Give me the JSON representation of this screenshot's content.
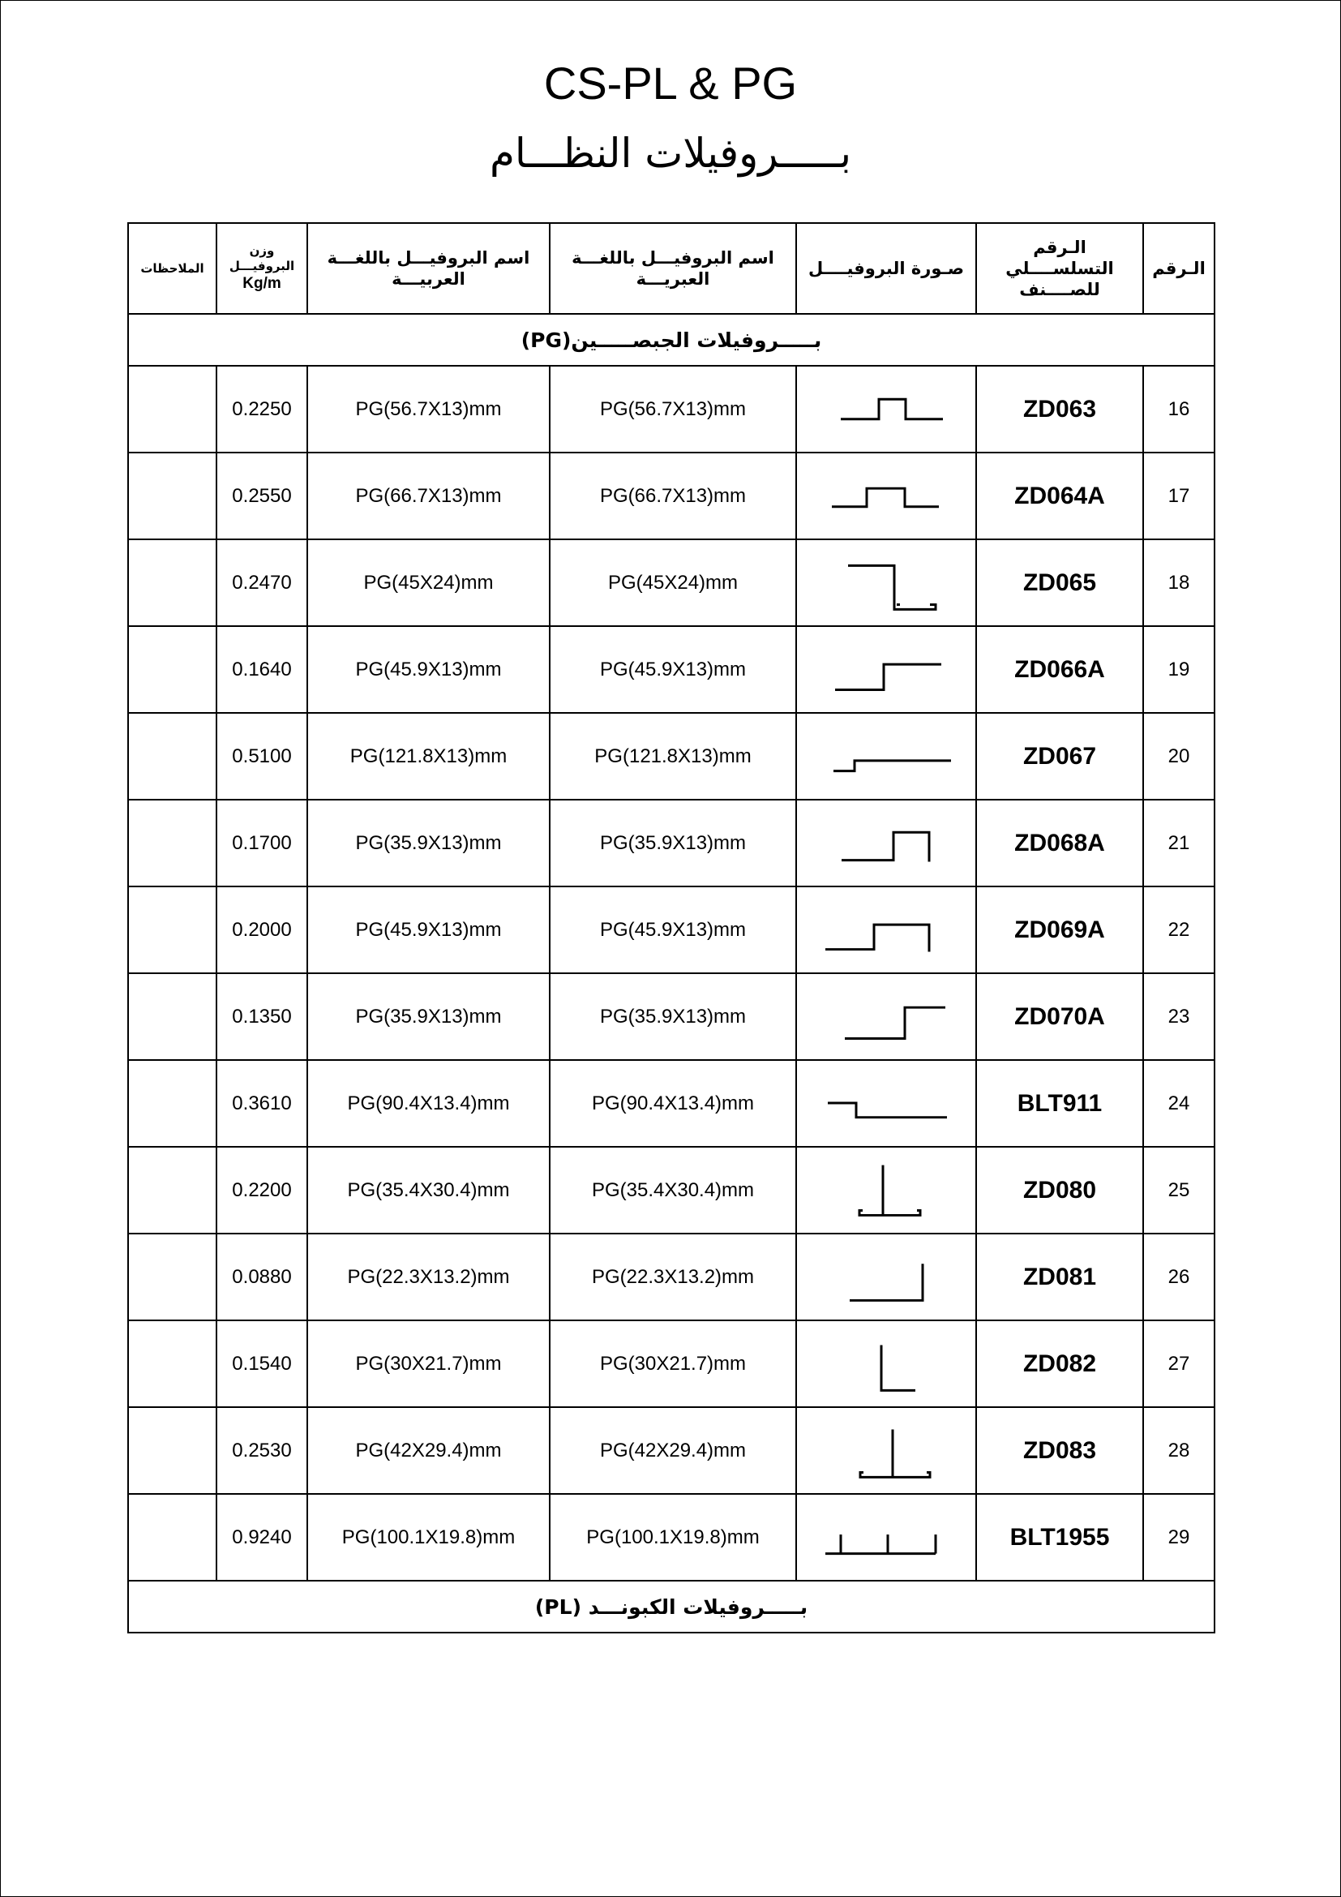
{
  "title": "CS-PL & PG",
  "subtitle": "بـــــروفيلات النظـــام",
  "headers": {
    "no": "الـرقم",
    "code": "الـرقم التسلســــلي للصــــنف",
    "image": "صـورة البروفيــــل",
    "name_hebrew": "اسم البروفيـــل باللغـــة العبريـــة",
    "name_arabic": "اسم البروفيـــل باللغـــة العربيـــة",
    "weight": "وزن البروفيـــل",
    "weight_unit": "Kg/m",
    "notes": "الملاحظات"
  },
  "sections": {
    "pg": "بـــــروفيلات الجبصـــــين(PG)",
    "pl": "بـــــروفيلات الكبونـــد (PL)"
  },
  "rows": [
    {
      "no": "16",
      "code": "ZD063",
      "profile_icon": "hat-profile",
      "name_hebrew": "PG(56.7X13)mm",
      "name_arabic": "PG(56.7X13)mm",
      "weight": "0.2250",
      "notes": ""
    },
    {
      "no": "17",
      "code": "ZD064A",
      "profile_icon": "hat-profile-wide",
      "name_hebrew": "PG(66.7X13)mm",
      "name_arabic": "PG(66.7X13)mm",
      "weight": "0.2550",
      "notes": ""
    },
    {
      "no": "18",
      "code": "ZD065",
      "profile_icon": "z-profile-hooked",
      "name_hebrew": "PG(45X24)mm",
      "name_arabic": "PG(45X24)mm",
      "weight": "0.2470",
      "notes": ""
    },
    {
      "no": "19",
      "code": "ZD066A",
      "profile_icon": "step-profile",
      "name_hebrew": "PG(45.9X13)mm",
      "name_arabic": "PG(45.9X13)mm",
      "weight": "0.1640",
      "notes": ""
    },
    {
      "no": "20",
      "code": "ZD067",
      "profile_icon": "low-step-profile",
      "name_hebrew": "PG(121.8X13)mm",
      "name_arabic": "PG(121.8X13)mm",
      "weight": "0.5100",
      "notes": ""
    },
    {
      "no": "21",
      "code": "ZD068A",
      "profile_icon": "step-channel-profile",
      "name_hebrew": "PG(35.9X13)mm",
      "name_arabic": "PG(35.9X13)mm",
      "weight": "0.1700",
      "notes": ""
    },
    {
      "no": "22",
      "code": "ZD069A",
      "profile_icon": "step-channel-profile-wide",
      "name_hebrew": "PG(45.9X13)mm",
      "name_arabic": "PG(45.9X13)mm",
      "weight": "0.2000",
      "notes": ""
    },
    {
      "no": "23",
      "code": "ZD070A",
      "profile_icon": "step-profile-short",
      "name_hebrew": "PG(35.9X13)mm",
      "name_arabic": "PG(35.9X13)mm",
      "weight": "0.1350",
      "notes": ""
    },
    {
      "no": "24",
      "code": "BLT911",
      "profile_icon": "drop-step-profile",
      "name_hebrew": "PG(90.4X13.4)mm",
      "name_arabic": "PG(90.4X13.4)mm",
      "weight": "0.3610",
      "notes": ""
    },
    {
      "no": "25",
      "code": "ZD080",
      "profile_icon": "t-profile",
      "name_hebrew": "PG(35.4X30.4)mm",
      "name_arabic": "PG(35.4X30.4)mm",
      "weight": "0.2200",
      "notes": ""
    },
    {
      "no": "26",
      "code": "ZD081",
      "profile_icon": "l-profile-right",
      "name_hebrew": "PG(22.3X13.2)mm",
      "name_arabic": "PG(22.3X13.2)mm",
      "weight": "0.0880",
      "notes": ""
    },
    {
      "no": "27",
      "code": "ZD082",
      "profile_icon": "l-profile",
      "name_hebrew": "PG(30X21.7)mm",
      "name_arabic": "PG(30X21.7)mm",
      "weight": "0.1540",
      "notes": ""
    },
    {
      "no": "28",
      "code": "ZD083",
      "profile_icon": "t-profile-tall",
      "name_hebrew": "PG(42X29.4)mm",
      "name_arabic": "PG(42X29.4)mm",
      "weight": "0.2530",
      "notes": ""
    },
    {
      "no": "29",
      "code": "BLT1955",
      "profile_icon": "triple-t-profile",
      "name_hebrew": "PG(100.1X19.8)mm",
      "name_arabic": "PG(100.1X19.8)mm",
      "weight": "0.9240",
      "notes": ""
    }
  ]
}
